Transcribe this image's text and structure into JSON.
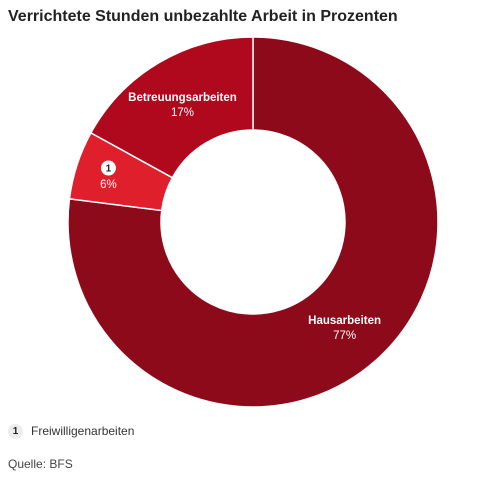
{
  "title": "Verrichtete Stunden unbezahlte Arbeit in Prozenten",
  "chart_data": {
    "type": "pie",
    "donut": true,
    "title": "Verrichtete Stunden unbezahlte Arbeit in Prozenten",
    "slices": [
      {
        "label": "Hausarbeiten",
        "value": 77,
        "display": "77%",
        "color": "#8c0a19"
      },
      {
        "label": "1",
        "value": 6,
        "display": "6%",
        "color": "#e01f2d",
        "footnote_marker": true
      },
      {
        "label": "Betreuungsarbeiten",
        "value": 17,
        "display": "17%",
        "color": "#b0081c"
      }
    ]
  },
  "footnote": {
    "marker": "1",
    "text": "Freiwilligenarbeiten"
  },
  "source": "Quelle: BFS"
}
